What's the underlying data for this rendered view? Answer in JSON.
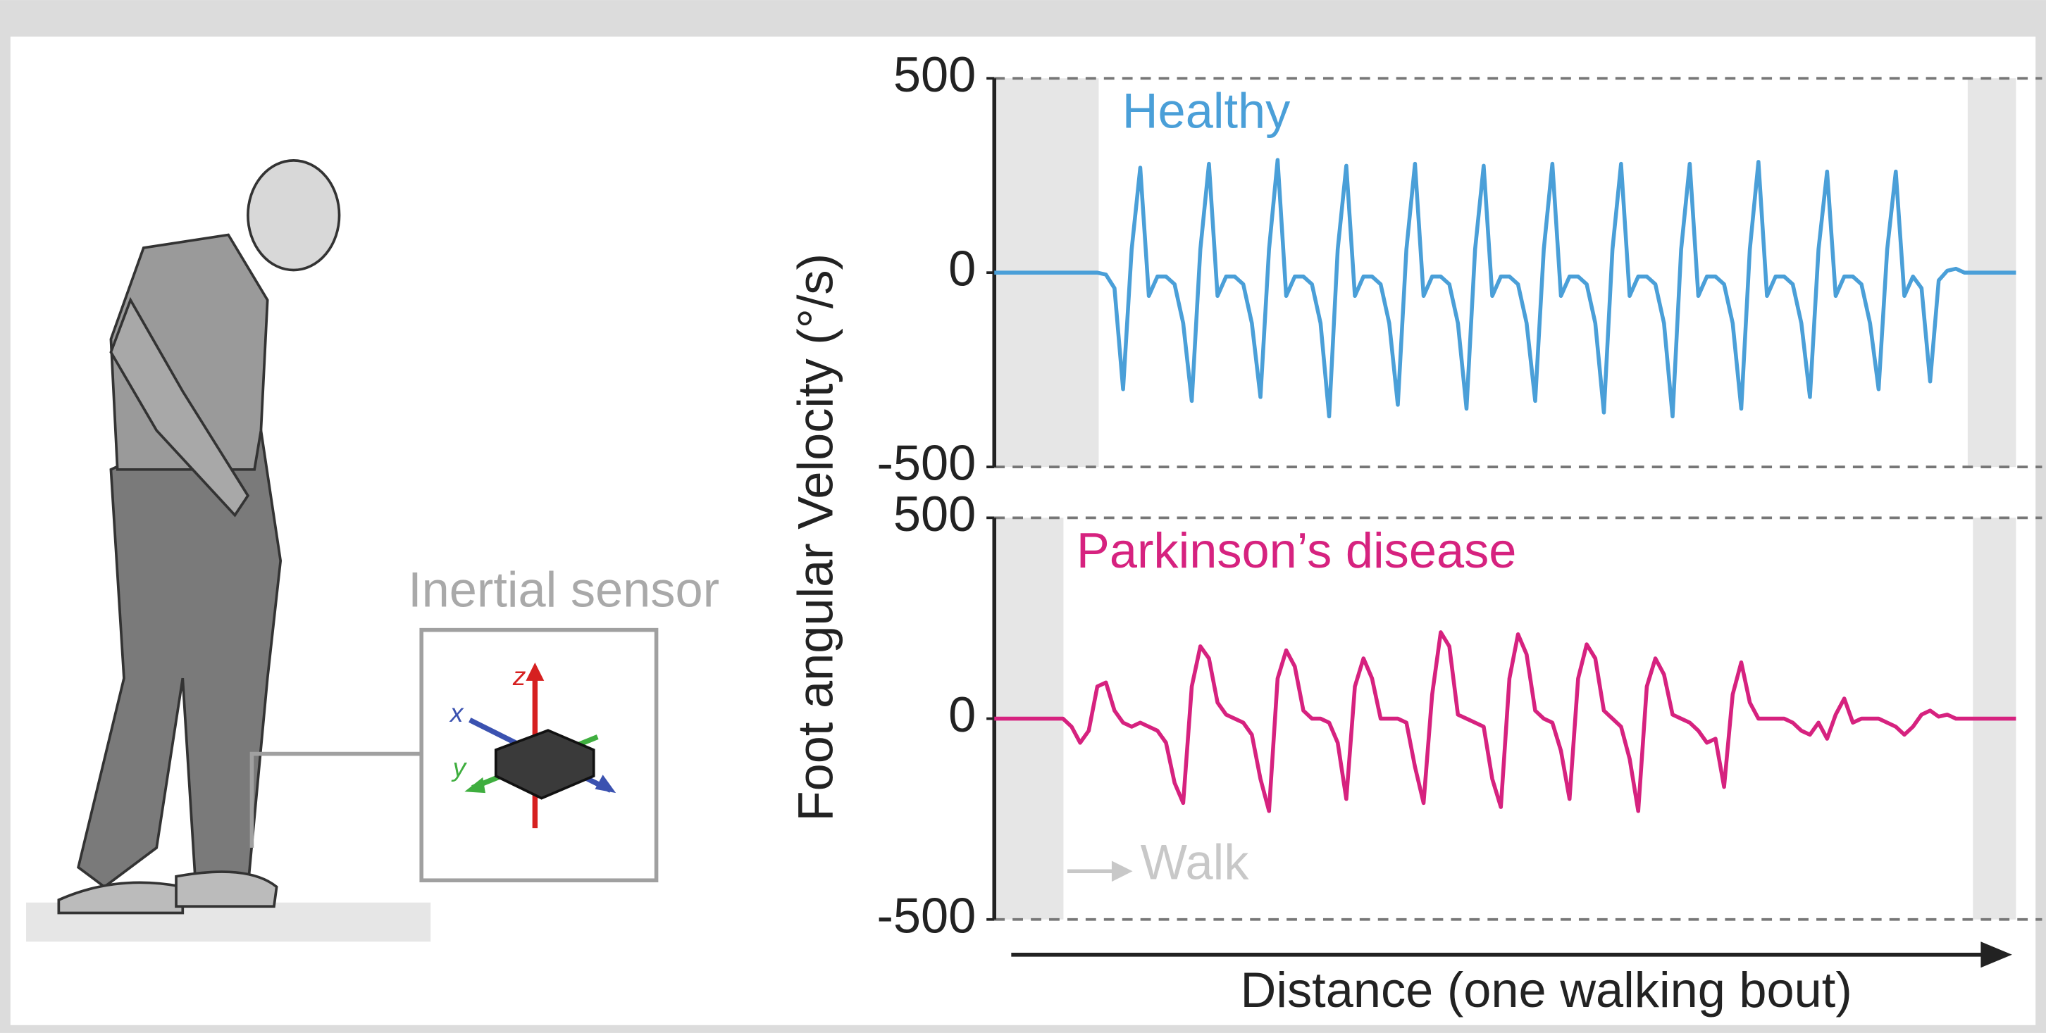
{
  "figure": {
    "y_label": "Foot angular Velocity (°/s)",
    "x_label": "Distance (one walking bout)",
    "sensor_label": "Inertial sensor",
    "walk_label": "Walk",
    "sensor_axes": [
      "x",
      "y",
      "z"
    ]
  },
  "chart_data": [
    {
      "type": "line",
      "ylim": [
        -500,
        500
      ],
      "yticks": [
        -500,
        0,
        500
      ],
      "series": [
        {
          "name": "Healthy",
          "color": "#4a9fd8",
          "values": [
            0,
            0,
            0,
            0,
            0,
            0,
            0,
            0,
            0,
            0,
            0,
            0,
            0,
            -5,
            -40,
            -300,
            60,
            270,
            -60,
            -10,
            -10,
            -30,
            -130,
            -330,
            60,
            280,
            -60,
            -10,
            -10,
            -30,
            -130,
            -320,
            60,
            290,
            -60,
            -10,
            -10,
            -30,
            -130,
            -370,
            60,
            275,
            -60,
            -10,
            -10,
            -30,
            -130,
            -340,
            60,
            280,
            -60,
            -10,
            -10,
            -30,
            -130,
            -350,
            60,
            275,
            -60,
            -10,
            -10,
            -30,
            -130,
            -330,
            60,
            280,
            -60,
            -10,
            -10,
            -30,
            -130,
            -360,
            60,
            280,
            -60,
            -10,
            -10,
            -30,
            -130,
            -370,
            60,
            280,
            -60,
            -10,
            -10,
            -30,
            -130,
            -350,
            60,
            285,
            -60,
            -10,
            -10,
            -30,
            -130,
            -320,
            60,
            260,
            -60,
            -10,
            -10,
            -30,
            -130,
            -300,
            60,
            260,
            -60,
            -10,
            -40,
            -280,
            -20,
            5,
            10,
            0,
            0,
            0,
            0,
            0,
            0,
            0
          ]
        }
      ]
    },
    {
      "type": "line",
      "ylim": [
        -500,
        500
      ],
      "yticks": [
        -500,
        0,
        500
      ],
      "series": [
        {
          "name": "Parkinson’s disease",
          "color": "#d6227f",
          "values": [
            0,
            0,
            0,
            0,
            0,
            0,
            0,
            0,
            0,
            -20,
            -60,
            -30,
            80,
            90,
            20,
            -10,
            -20,
            -10,
            -20,
            -30,
            -60,
            -160,
            -210,
            80,
            180,
            150,
            40,
            10,
            0,
            -10,
            -40,
            -150,
            -230,
            100,
            170,
            130,
            20,
            0,
            0,
            -10,
            -60,
            -200,
            80,
            150,
            100,
            0,
            0,
            0,
            -10,
            -120,
            -210,
            60,
            215,
            180,
            10,
            0,
            -10,
            -20,
            -150,
            -220,
            100,
            210,
            160,
            20,
            0,
            -10,
            -80,
            -200,
            100,
            185,
            150,
            20,
            0,
            -20,
            -100,
            -230,
            80,
            150,
            110,
            10,
            0,
            -10,
            -30,
            -60,
            -50,
            -170,
            60,
            140,
            40,
            0,
            0,
            0,
            0,
            -10,
            -30,
            -40,
            -10,
            -50,
            10,
            50,
            -10,
            0,
            0,
            0,
            -10,
            -20,
            -40,
            -20,
            10,
            20,
            5,
            10,
            0,
            0,
            0,
            0,
            0,
            0,
            0,
            0
          ]
        }
      ]
    }
  ]
}
